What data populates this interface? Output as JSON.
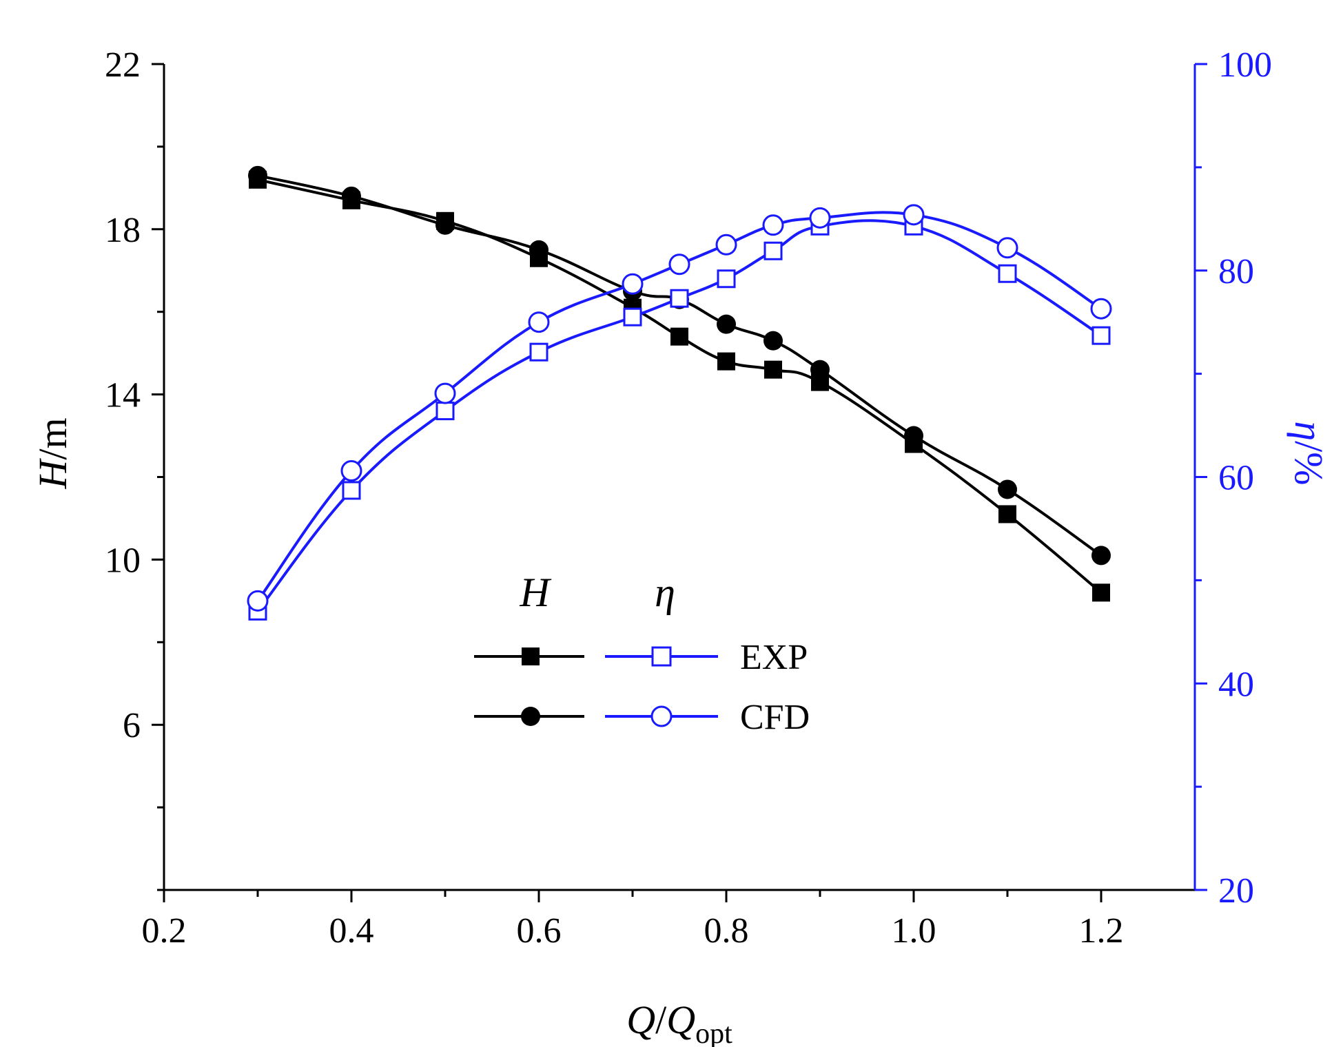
{
  "chart_data": {
    "type": "line",
    "title": "",
    "colors": {
      "head": "#000000",
      "efficiency": "#1a1aff"
    },
    "xlabel": {
      "main": "Q",
      "sep": "/",
      "main2": "Q",
      "sub": "opt"
    },
    "ylabel_left": {
      "italic": "H",
      "rest": "/m"
    },
    "ylabel_right": {
      "italic": "η",
      "rest": "/%"
    },
    "xlim": [
      0.2,
      1.3
    ],
    "ylim_left": [
      2,
      22
    ],
    "ylim_right": [
      20,
      100
    ],
    "x_ticks": [
      "0.2",
      "0.4",
      "0.6",
      "0.8",
      "1.0",
      "1.2"
    ],
    "y_left_ticks": [
      "6",
      "10",
      "14",
      "18",
      "22"
    ],
    "y_right_ticks": [
      "20",
      "40",
      "60",
      "80",
      "100"
    ],
    "x": [
      0.3,
      0.4,
      0.5,
      0.6,
      0.7,
      0.75,
      0.8,
      0.85,
      0.9,
      1.0,
      1.1,
      1.2
    ],
    "series": [
      {
        "name": "H EXP",
        "axis": "left",
        "marker": "square-filled",
        "values": [
          19.2,
          18.7,
          18.2,
          17.3,
          16.1,
          15.4,
          14.8,
          14.6,
          14.3,
          12.8,
          11.1,
          9.2
        ]
      },
      {
        "name": "H CFD",
        "axis": "left",
        "marker": "circle-filled",
        "values": [
          19.3,
          18.8,
          18.1,
          17.5,
          16.5,
          16.3,
          15.7,
          15.3,
          14.6,
          13.0,
          11.7,
          10.1
        ]
      },
      {
        "name": "η EXP",
        "axis": "right",
        "marker": "square-open",
        "values": [
          47.0,
          58.7,
          66.4,
          72.1,
          75.5,
          77.3,
          79.2,
          81.9,
          84.3,
          84.3,
          79.7,
          73.7
        ]
      },
      {
        "name": "η CFD",
        "axis": "right",
        "marker": "circle-open",
        "values": [
          48.0,
          60.6,
          68.1,
          75.0,
          78.7,
          80.6,
          82.5,
          84.4,
          85.1,
          85.4,
          82.2,
          76.3
        ]
      }
    ],
    "legend": {
      "position": "center-left",
      "col_heads": [
        "H",
        "η"
      ],
      "rows": [
        "EXP",
        "CFD"
      ]
    }
  }
}
